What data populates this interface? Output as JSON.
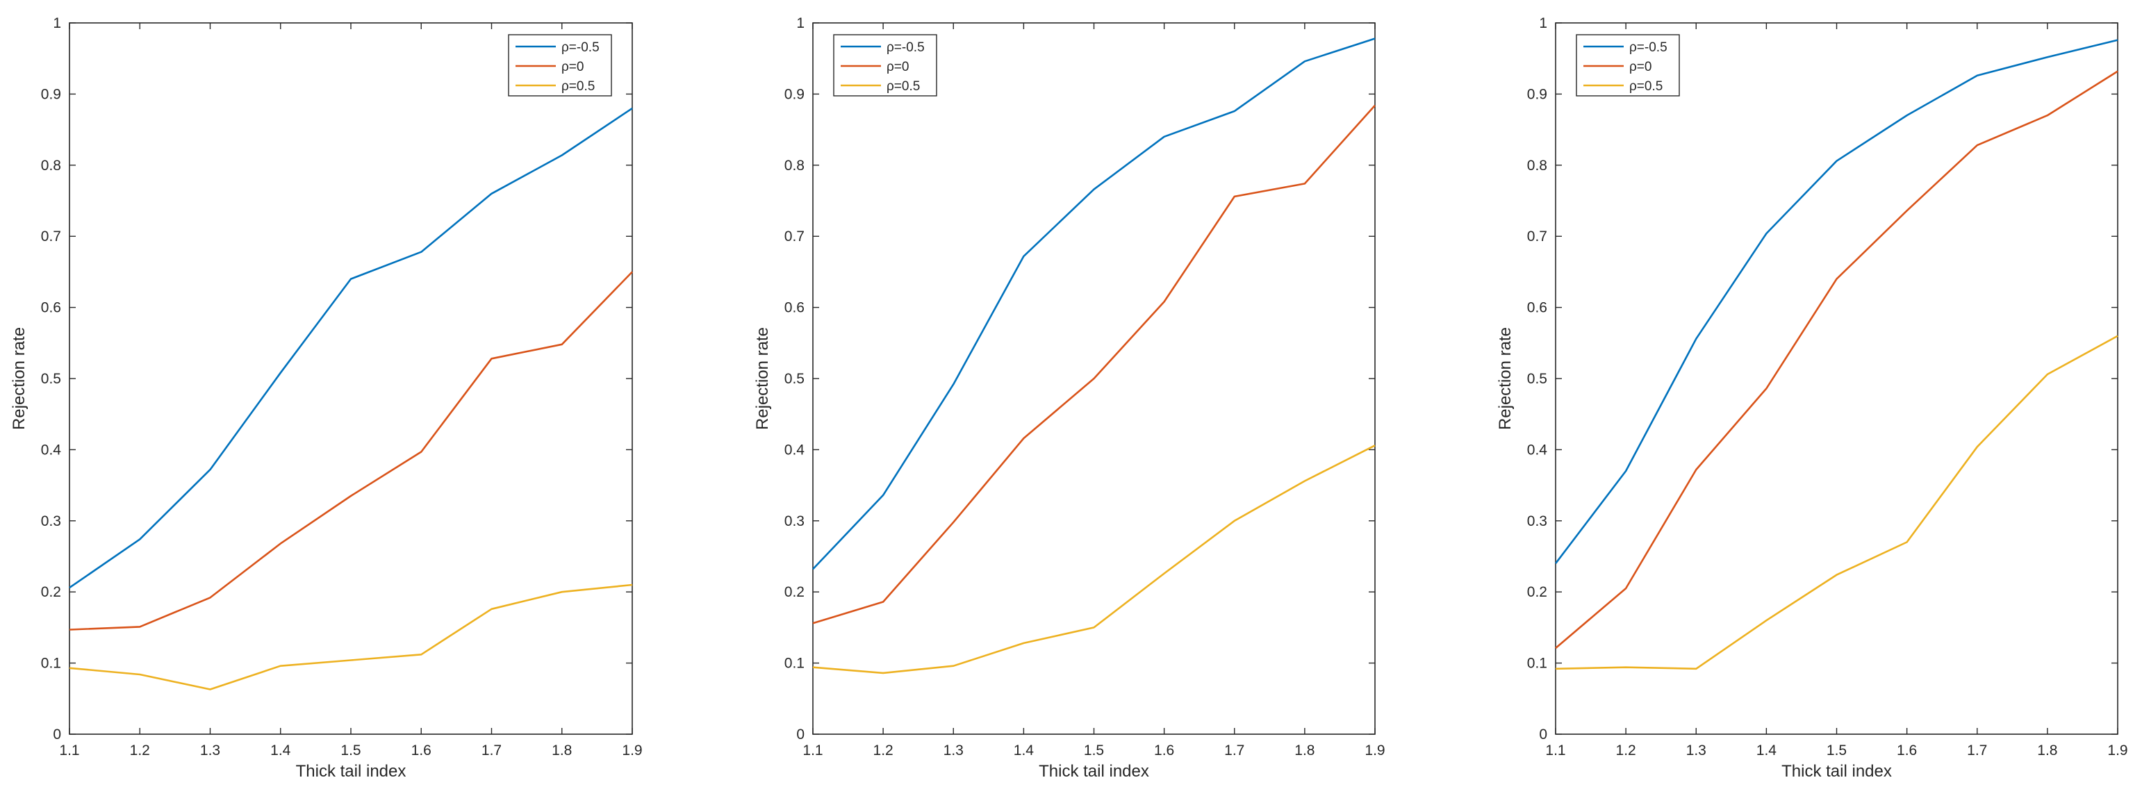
{
  "figure": {
    "panels": [
      "left",
      "middle",
      "right"
    ]
  },
  "chart_data": [
    {
      "type": "line",
      "title": "",
      "xlabel": "Thick tail index",
      "ylabel": "Rejection rate",
      "xlim": [
        1.1,
        1.9
      ],
      "ylim": [
        0,
        1
      ],
      "x": [
        1.1,
        1.2,
        1.3,
        1.4,
        1.5,
        1.6,
        1.7,
        1.8,
        1.9
      ],
      "xticks": [
        "1.1",
        "1.2",
        "1.3",
        "1.4",
        "1.5",
        "1.6",
        "1.7",
        "1.8",
        "1.9"
      ],
      "yticks": [
        "0",
        "0.1",
        "0.2",
        "0.3",
        "0.4",
        "0.5",
        "0.6",
        "0.7",
        "0.8",
        "0.9",
        "1"
      ],
      "legend_position": "top-right",
      "series": [
        {
          "name": "ρ=-0.5",
          "color": "#0072BD",
          "values": [
            0.206,
            0.274,
            0.372,
            0.508,
            0.64,
            0.678,
            0.76,
            0.814,
            0.88
          ]
        },
        {
          "name": "ρ=0",
          "color": "#D95319",
          "values": [
            0.147,
            0.151,
            0.192,
            0.268,
            0.335,
            0.397,
            0.528,
            0.548,
            0.65
          ]
        },
        {
          "name": "ρ=0.5",
          "color": "#EDB120",
          "values": [
            0.093,
            0.084,
            0.063,
            0.096,
            0.104,
            0.112,
            0.176,
            0.2,
            0.21
          ]
        }
      ]
    },
    {
      "type": "line",
      "title": "",
      "xlabel": "Thick tail index",
      "ylabel": "Rejection rate",
      "xlim": [
        1.1,
        1.9
      ],
      "ylim": [
        0,
        1
      ],
      "x": [
        1.1,
        1.2,
        1.3,
        1.4,
        1.5,
        1.6,
        1.7,
        1.8,
        1.9
      ],
      "xticks": [
        "1.1",
        "1.2",
        "1.3",
        "1.4",
        "1.5",
        "1.6",
        "1.7",
        "1.8",
        "1.9"
      ],
      "yticks": [
        "0",
        "0.1",
        "0.2",
        "0.3",
        "0.4",
        "0.5",
        "0.6",
        "0.7",
        "0.8",
        "0.9",
        "1"
      ],
      "legend_position": "top-left",
      "series": [
        {
          "name": "ρ=-0.5",
          "color": "#0072BD",
          "values": [
            0.232,
            0.336,
            0.492,
            0.672,
            0.766,
            0.84,
            0.876,
            0.946,
            0.978
          ]
        },
        {
          "name": "ρ=0",
          "color": "#D95319",
          "values": [
            0.156,
            0.186,
            0.298,
            0.416,
            0.5,
            0.608,
            0.756,
            0.774,
            0.884
          ]
        },
        {
          "name": "ρ=0.5",
          "color": "#EDB120",
          "values": [
            0.094,
            0.086,
            0.096,
            0.128,
            0.15,
            0.226,
            0.3,
            0.356,
            0.406
          ]
        }
      ]
    },
    {
      "type": "line",
      "title": "",
      "xlabel": "Thick tail index",
      "ylabel": "Rejection rate",
      "xlim": [
        1.1,
        1.9
      ],
      "ylim": [
        0,
        1
      ],
      "x": [
        1.1,
        1.2,
        1.3,
        1.4,
        1.5,
        1.6,
        1.7,
        1.8,
        1.9
      ],
      "xticks": [
        "1.1",
        "1.2",
        "1.3",
        "1.4",
        "1.5",
        "1.6",
        "1.7",
        "1.8",
        "1.9"
      ],
      "yticks": [
        "0",
        "0.1",
        "0.2",
        "0.3",
        "0.4",
        "0.5",
        "0.6",
        "0.7",
        "0.8",
        "0.9",
        "1"
      ],
      "legend_position": "top-left",
      "series": [
        {
          "name": "ρ=-0.5",
          "color": "#0072BD",
          "values": [
            0.24,
            0.37,
            0.556,
            0.704,
            0.806,
            0.87,
            0.926,
            0.952,
            0.976
          ]
        },
        {
          "name": "ρ=0",
          "color": "#D95319",
          "values": [
            0.121,
            0.205,
            0.372,
            0.486,
            0.64,
            0.736,
            0.828,
            0.87,
            0.932
          ]
        },
        {
          "name": "ρ=0.5",
          "color": "#EDB120",
          "values": [
            0.092,
            0.094,
            0.092,
            0.16,
            0.224,
            0.27,
            0.404,
            0.506,
            0.56
          ]
        }
      ]
    }
  ]
}
